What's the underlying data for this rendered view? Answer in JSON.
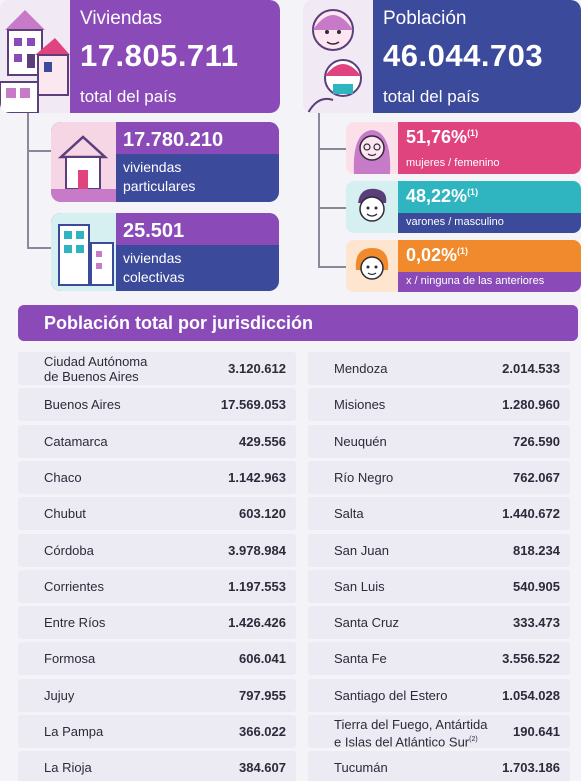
{
  "viviendas": {
    "label": "Viviendas",
    "number": "17.805.711",
    "sub": "total del país",
    "particulares": {
      "number": "17.780.210",
      "line1": "viviendas",
      "line2": "particulares"
    },
    "colectivas": {
      "number": "25.501",
      "line1": "viviendas",
      "line2": "colectivas"
    }
  },
  "poblacion": {
    "label": "Población",
    "number": "46.044.703",
    "sub": "total del país",
    "mujeres": {
      "pct": "51,76%",
      "note": "(1)",
      "label": "mujeres / femenino"
    },
    "varones": {
      "pct": "48,22%",
      "note": "(1)",
      "label": "varones / masculino"
    },
    "otros": {
      "pct": "0,02%",
      "note": "(1)",
      "label": "x / ninguna de las anteriores"
    }
  },
  "colors": {
    "purple": "#8a4bb8",
    "navy": "#3b4a9a",
    "pink": "#e0447f",
    "teal": "#2fb5bf",
    "orange": "#f08a2c"
  },
  "tabla": {
    "title": "Población total por jurisdicción",
    "left": [
      {
        "name1": "Ciudad Autónoma",
        "name2": "de Buenos Aires",
        "value": "3.120.612"
      },
      {
        "name1": "Buenos Aires",
        "value": "17.569.053"
      },
      {
        "name1": "Catamarca",
        "value": "429.556"
      },
      {
        "name1": "Chaco",
        "value": "1.142.963"
      },
      {
        "name1": "Chubut",
        "value": "603.120"
      },
      {
        "name1": "Córdoba",
        "value": "3.978.984"
      },
      {
        "name1": "Corrientes",
        "value": "1.197.553"
      },
      {
        "name1": "Entre Ríos",
        "value": "1.426.426"
      },
      {
        "name1": "Formosa",
        "value": "606.041"
      },
      {
        "name1": "Jujuy",
        "value": "797.955"
      },
      {
        "name1": "La Pampa",
        "value": "366.022"
      },
      {
        "name1": "La Rioja",
        "value": "384.607"
      }
    ],
    "right": [
      {
        "name1": "Mendoza",
        "value": "2.014.533"
      },
      {
        "name1": "Misiones",
        "value": "1.280.960"
      },
      {
        "name1": "Neuquén",
        "value": "726.590"
      },
      {
        "name1": "Río Negro",
        "value": "762.067"
      },
      {
        "name1": "Salta",
        "value": "1.440.672"
      },
      {
        "name1": "San Juan",
        "value": "818.234"
      },
      {
        "name1": "San Luis",
        "value": "540.905"
      },
      {
        "name1": "Santa Cruz",
        "value": "333.473"
      },
      {
        "name1": "Santa Fe",
        "value": "3.556.522"
      },
      {
        "name1": "Santiago del Estero",
        "value": "1.054.028"
      },
      {
        "name1": "Tierra del Fuego, Antártida",
        "name2": "e Islas del Atlántico Sur",
        "note": "(2)",
        "value": "190.641"
      },
      {
        "name1": "Tucumán",
        "value": "1.703.186"
      }
    ]
  }
}
